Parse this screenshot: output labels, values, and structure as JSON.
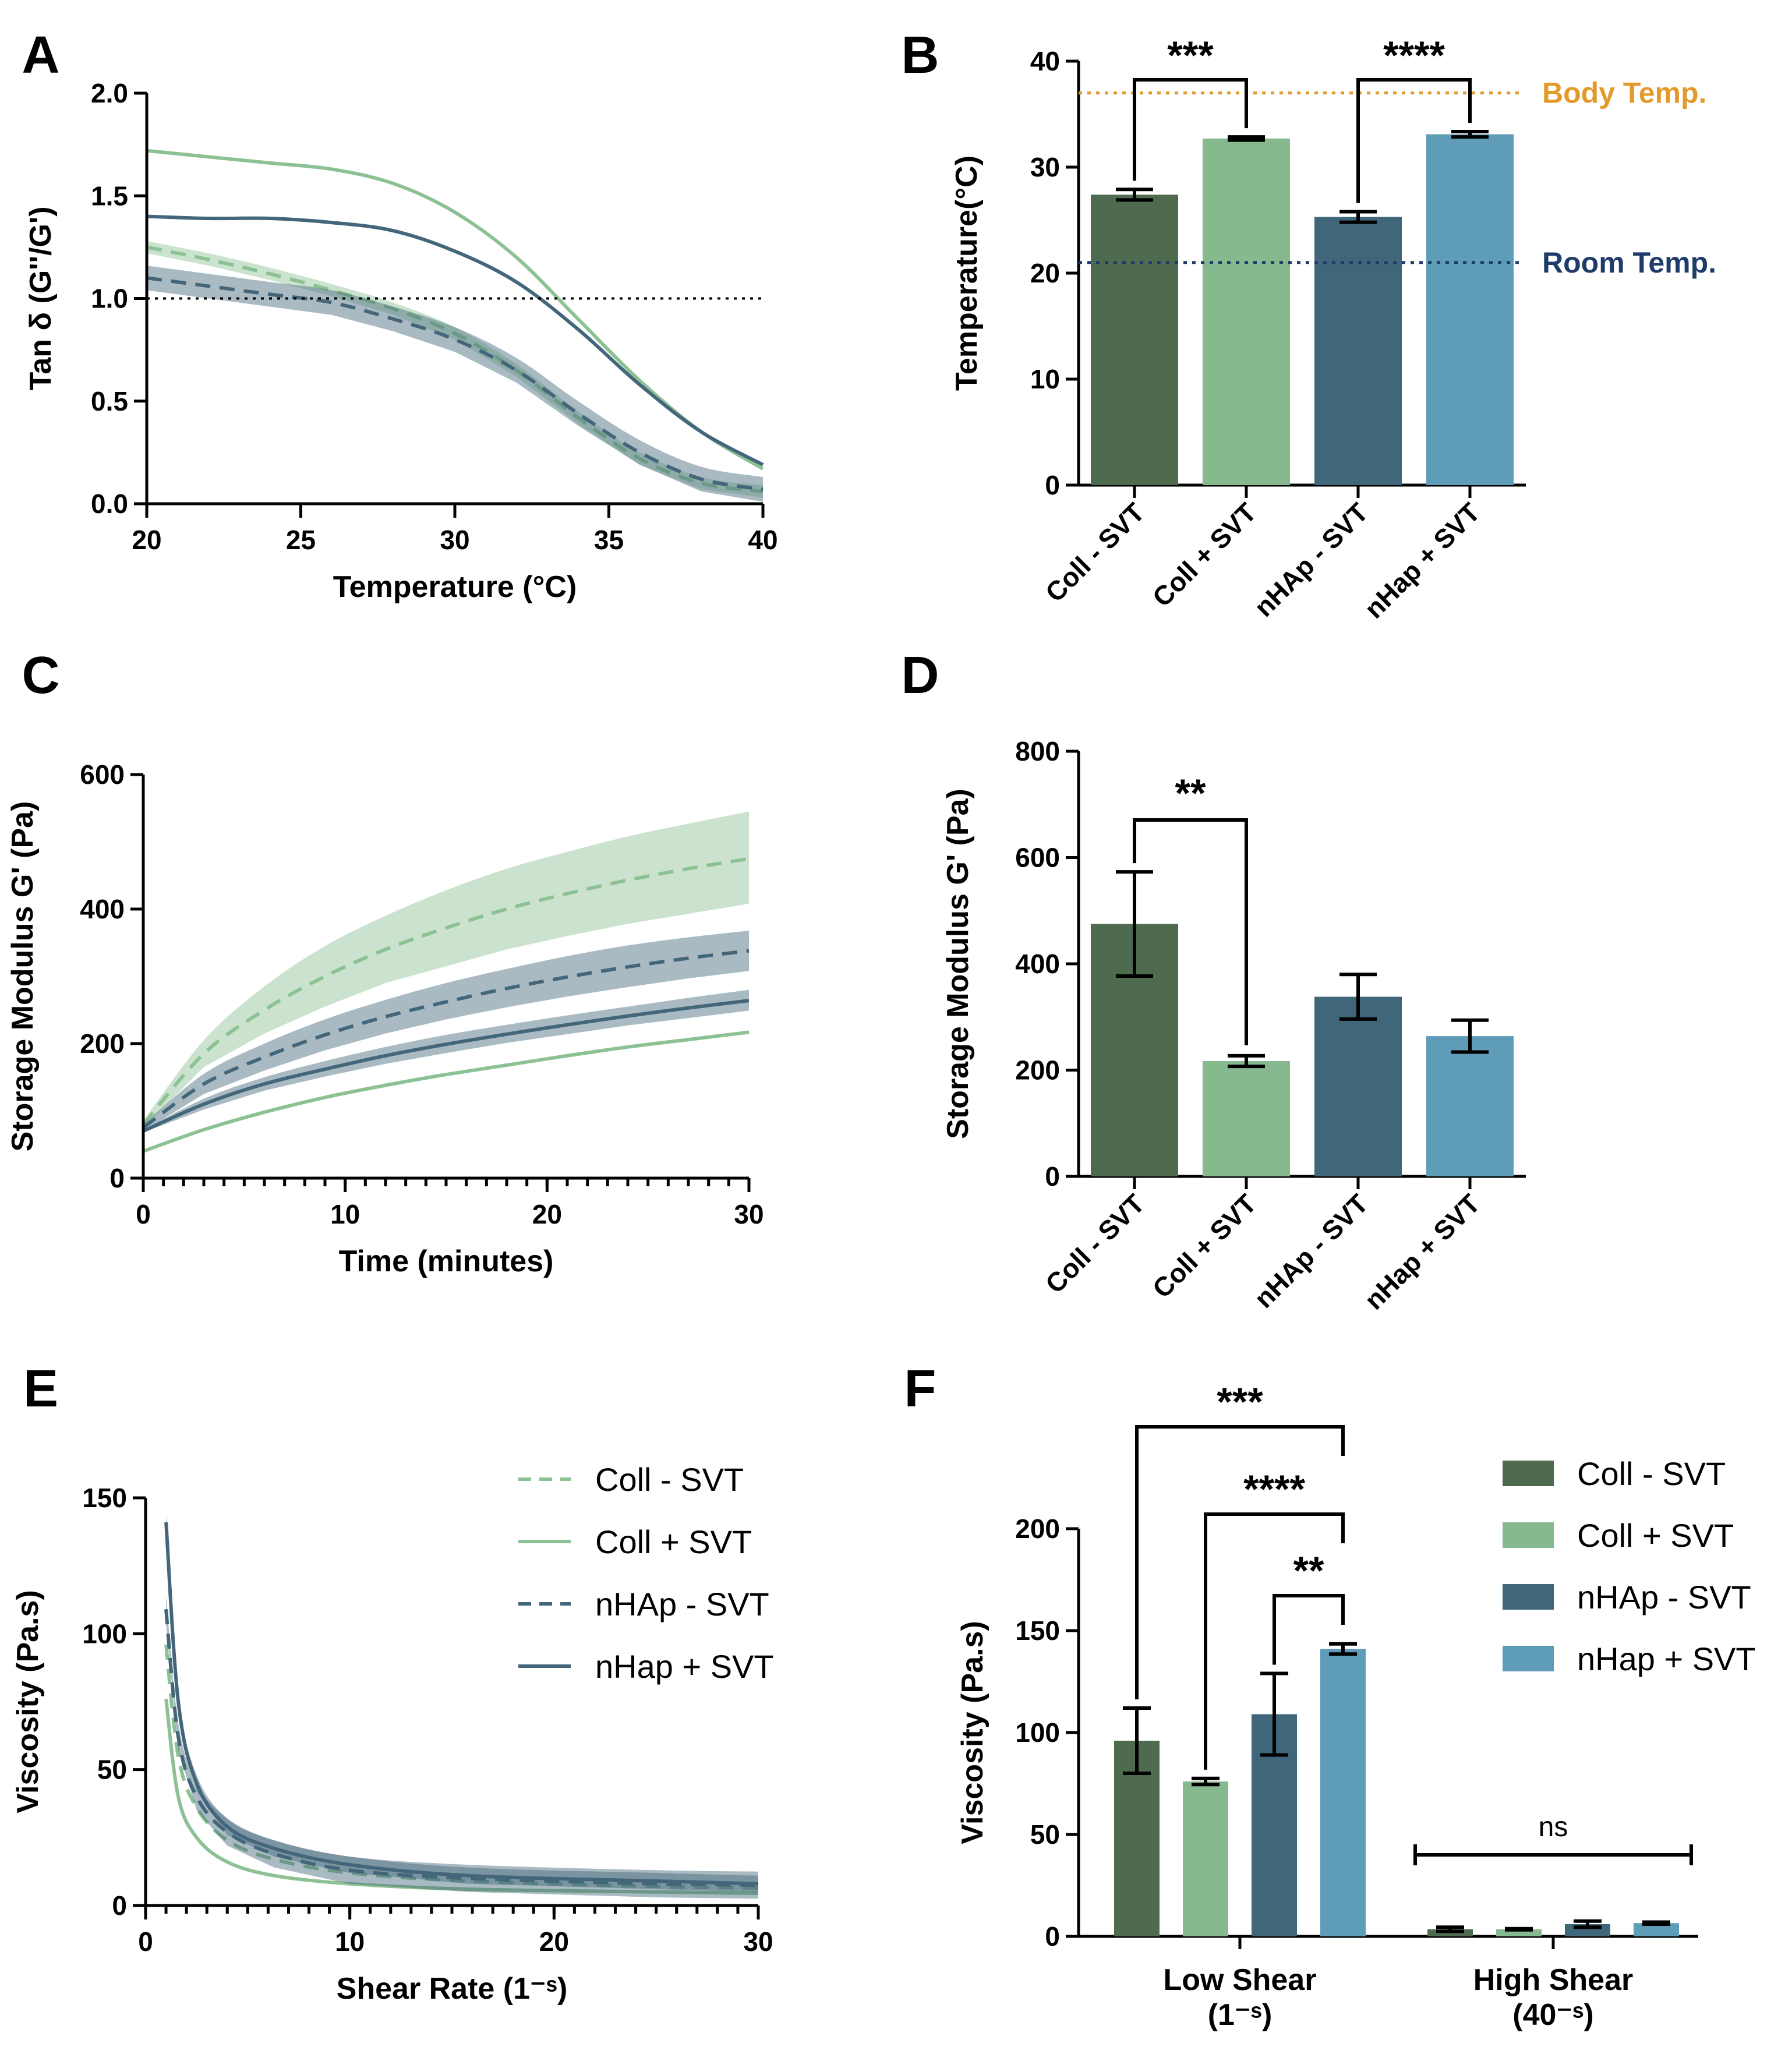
{
  "colors": {
    "coll_minus": "#4e6b50",
    "coll_plus": "#86b98e",
    "nhap_minus": "#3f6679",
    "nhap_plus": "#5f9cb8",
    "coll_line": "#8cc193",
    "nhap_line": "#43667a",
    "body_temp": "#e39a2b",
    "room_temp": "#1f3b69"
  },
  "chart_data": [
    {
      "panel": "A",
      "type": "line",
      "xlabel": "Temperature (°C)",
      "ylabel": "Tan δ (G''/G')",
      "xlim": [
        20,
        40
      ],
      "ylim": [
        0,
        2
      ],
      "xticks": [
        "20",
        "25",
        "30",
        "35",
        "40"
      ],
      "yticks": [
        "0.0",
        "0.5",
        "1.0",
        "1.5",
        "2.0"
      ],
      "reference_line": 1.0,
      "x": [
        20,
        22,
        24,
        26,
        28,
        30,
        32,
        34,
        36,
        38,
        40
      ],
      "series": [
        {
          "name": "Coll - SVT",
          "style": "dashed",
          "color": "coll_line",
          "values": [
            1.25,
            1.19,
            1.12,
            1.04,
            0.95,
            0.83,
            0.65,
            0.42,
            0.22,
            0.1,
            0.06
          ],
          "band": 0.03
        },
        {
          "name": "Coll + SVT",
          "style": "solid",
          "color": "coll_line",
          "values": [
            1.72,
            1.69,
            1.66,
            1.63,
            1.56,
            1.42,
            1.2,
            0.9,
            0.6,
            0.35,
            0.17
          ],
          "band": 0
        },
        {
          "name": "nHAp - SVT",
          "style": "dashed",
          "color": "nhap_line",
          "values": [
            1.1,
            1.06,
            1.02,
            0.98,
            0.9,
            0.8,
            0.65,
            0.44,
            0.25,
            0.12,
            0.07
          ],
          "band": 0.06
        },
        {
          "name": "nHap + SVT",
          "style": "solid",
          "color": "nhap_line",
          "values": [
            1.4,
            1.39,
            1.39,
            1.37,
            1.33,
            1.23,
            1.08,
            0.85,
            0.58,
            0.35,
            0.19
          ],
          "band": 0
        }
      ]
    },
    {
      "panel": "B",
      "type": "bar",
      "ylabel": "Temperature(°C)",
      "ylim": [
        0,
        40
      ],
      "yticks": [
        "0",
        "10",
        "20",
        "30",
        "40"
      ],
      "categories": [
        "Coll - SVT",
        "Coll + SVT",
        "nHAp - SVT",
        "nHap + SVT"
      ],
      "values": [
        27.4,
        32.7,
        25.3,
        33.1
      ],
      "errors": [
        0.5,
        0.15,
        0.5,
        0.25
      ],
      "bar_colors": [
        "coll_minus",
        "coll_plus",
        "nhap_minus",
        "nhap_plus"
      ],
      "reference_lines": [
        {
          "label": "Body Temp.",
          "value": 37,
          "color": "body_temp"
        },
        {
          "label": "Room Temp.",
          "value": 21,
          "color": "room_temp"
        }
      ],
      "significance": [
        {
          "from": 0,
          "to": 1,
          "stars": "***"
        },
        {
          "from": 2,
          "to": 3,
          "stars": "****"
        }
      ]
    },
    {
      "panel": "C",
      "type": "line",
      "xlabel": "Time (minutes)",
      "ylabel": "Storage Modulus G' (Pa)",
      "xlim": [
        0,
        30
      ],
      "ylim": [
        0,
        600
      ],
      "xticks": [
        "0",
        "10",
        "20",
        "30"
      ],
      "yticks": [
        "0",
        "200",
        "400",
        "600"
      ],
      "x": [
        0,
        3,
        6,
        9,
        12,
        15,
        18,
        21,
        24,
        27,
        30
      ],
      "series": [
        {
          "name": "Coll - SVT",
          "style": "dashed",
          "color": "coll_line",
          "values": [
            80,
            185,
            250,
            300,
            340,
            372,
            400,
            423,
            443,
            460,
            475
          ],
          "band_lo": [
            75,
            165,
            215,
            255,
            290,
            315,
            340,
            360,
            378,
            393,
            408
          ],
          "band_hi": [
            85,
            205,
            285,
            345,
            390,
            428,
            460,
            485,
            508,
            527,
            545
          ]
        },
        {
          "name": "Coll + SVT",
          "style": "solid",
          "color": "coll_line",
          "values": [
            40,
            72,
            98,
            120,
            138,
            154,
            168,
            182,
            195,
            206,
            217
          ],
          "band_lo": null,
          "band_hi": null
        },
        {
          "name": "nHAp - SVT",
          "style": "dashed",
          "color": "nhap_line",
          "values": [
            75,
            140,
            180,
            213,
            240,
            262,
            282,
            299,
            314,
            327,
            338
          ],
          "band_lo": [
            70,
            125,
            160,
            190,
            215,
            236,
            254,
            270,
            284,
            297,
            308
          ],
          "band_hi": [
            80,
            155,
            200,
            236,
            265,
            290,
            311,
            330,
            346,
            358,
            368
          ]
        },
        {
          "name": "nHap + SVT",
          "style": "solid",
          "color": "nhap_line",
          "values": [
            70,
            110,
            140,
            162,
            182,
            199,
            214,
            228,
            241,
            253,
            264
          ],
          "band_lo": [
            68,
            102,
            130,
            151,
            170,
            186,
            201,
            214,
            227,
            238,
            249
          ],
          "band_hi": [
            72,
            118,
            150,
            174,
            195,
            213,
            228,
            242,
            255,
            268,
            280
          ]
        }
      ]
    },
    {
      "panel": "D",
      "type": "bar",
      "ylabel": "Storage Modulus G' (Pa)",
      "ylim": [
        0,
        800
      ],
      "yticks": [
        "0",
        "200",
        "400",
        "600",
        "800"
      ],
      "categories": [
        "Coll - SVT",
        "Coll + SVT",
        "nHAp - SVT",
        "nHap + SVT"
      ],
      "values": [
        475,
        217,
        338,
        264
      ],
      "errors": [
        98,
        10,
        42,
        30
      ],
      "bar_colors": [
        "coll_minus",
        "coll_plus",
        "nhap_minus",
        "nhap_plus"
      ],
      "significance": [
        {
          "from": 0,
          "to": 1,
          "stars": "**"
        }
      ]
    },
    {
      "panel": "E",
      "type": "line",
      "xlabel": "Shear Rate (1⁻ˢ)",
      "ylabel": "Viscosity (Pa.s)",
      "xlim": [
        0,
        30
      ],
      "ylim": [
        0,
        150
      ],
      "xticks": [
        "0",
        "10",
        "20",
        "30"
      ],
      "yticks": [
        "0",
        "50",
        "100",
        "150"
      ],
      "x": [
        1,
        1.6,
        2.5,
        4,
        6.3,
        10,
        15.8,
        25,
        30
      ],
      "series": [
        {
          "name": "Coll - SVT",
          "style": "dashed",
          "color": "coll_line",
          "values": [
            96,
            55,
            36,
            24,
            17,
            12,
            9,
            7,
            6.5
          ],
          "band": 0
        },
        {
          "name": "Coll + SVT",
          "style": "solid",
          "color": "coll_line",
          "values": [
            76,
            40,
            25,
            16,
            11,
            8,
            6,
            5,
            4.5
          ],
          "band": 0
        },
        {
          "name": "nHAp - SVT",
          "style": "dashed",
          "color": "nhap_line",
          "values": [
            109,
            62,
            40,
            27,
            19,
            13,
            10,
            8,
            7.5
          ],
          "band": 5
        },
        {
          "name": "nHap + SVT",
          "style": "solid",
          "color": "nhap_line",
          "values": [
            141,
            75,
            45,
            29,
            21,
            15,
            11,
            9,
            8
          ],
          "band": 3
        }
      ],
      "legend": [
        "Coll - SVT",
        "Coll + SVT",
        "nHAp - SVT",
        "nHap + SVT"
      ]
    },
    {
      "panel": "F",
      "type": "bar",
      "ylabel": "Viscosity (Pa.s)",
      "ylim": [
        0,
        200
      ],
      "yticks": [
        "0",
        "50",
        "100",
        "150",
        "200"
      ],
      "groups": [
        "Low Shear",
        "High Shear"
      ],
      "group_sublabels": [
        "(1⁻ˢ)",
        "(40⁻ˢ)"
      ],
      "series": [
        {
          "name": "Coll - SVT",
          "color": "coll_minus",
          "values": [
            96,
            3.5
          ],
          "errors": [
            16,
            1
          ]
        },
        {
          "name": "Coll + SVT",
          "color": "coll_plus",
          "values": [
            76,
            3.5
          ],
          "errors": [
            1.5,
            0.3
          ]
        },
        {
          "name": "nHAp - SVT",
          "color": "nhap_minus",
          "values": [
            109,
            6
          ],
          "errors": [
            20,
            1.5
          ]
        },
        {
          "name": "nHap + SVT",
          "color": "nhap_plus",
          "values": [
            141,
            6.5
          ],
          "errors": [
            2.5,
            0.5
          ]
        }
      ],
      "significance": [
        {
          "from": 0,
          "to": 3,
          "stars": "***"
        },
        {
          "from": 1,
          "to": 3,
          "stars": "****"
        },
        {
          "from": 2,
          "to": 3,
          "stars": "**"
        },
        {
          "group": 1,
          "label": "ns"
        }
      ],
      "legend": [
        "Coll - SVT",
        "Coll + SVT",
        "nHAp - SVT",
        "nHap + SVT"
      ]
    }
  ]
}
